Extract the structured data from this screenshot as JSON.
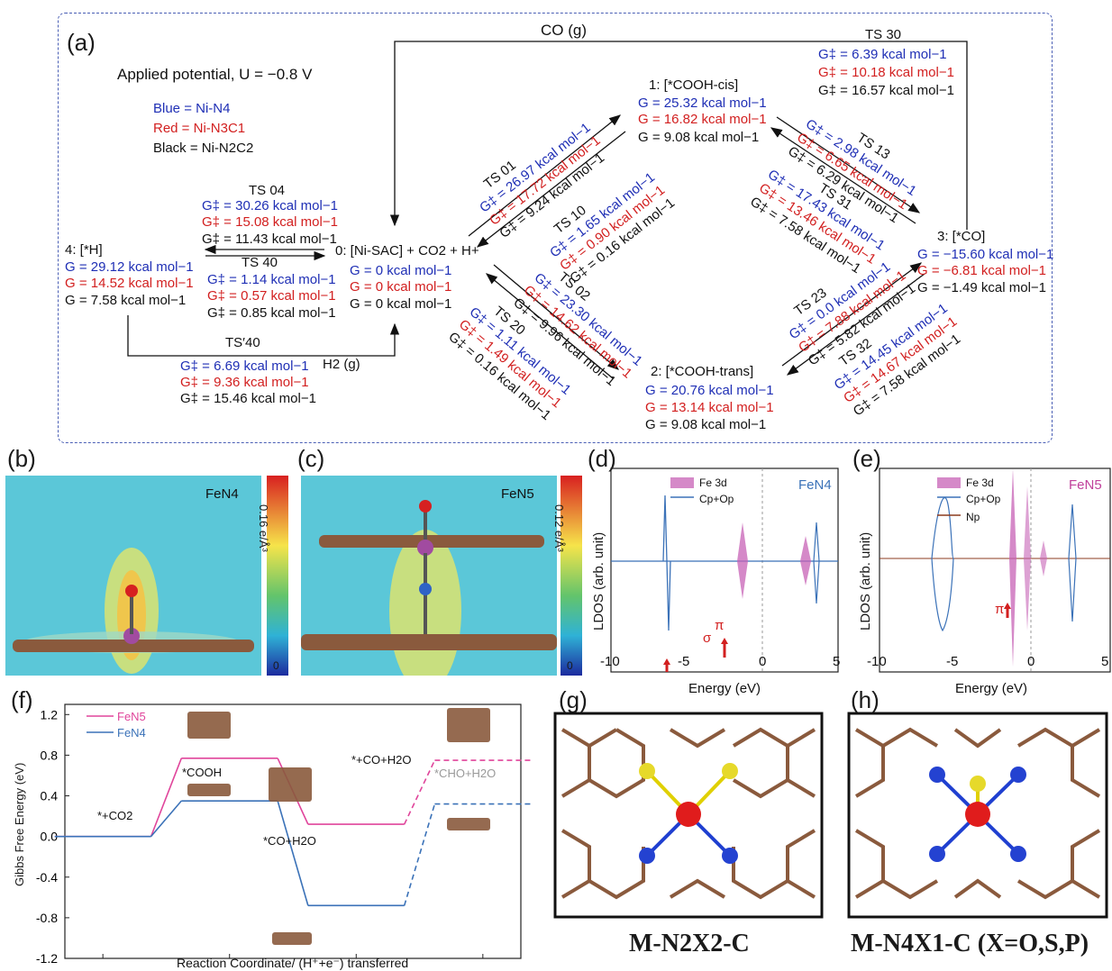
{
  "panels": {
    "a": "(a)",
    "b": "(b)",
    "c": "(c)",
    "d": "(d)",
    "e": "(e)",
    "f": "(f)",
    "g": "(g)",
    "h": "(h)"
  },
  "panel_a": {
    "potential": "Applied potential, U = −0.8 V",
    "legend_blue": "Blue = Ni-N4",
    "legend_red": "Red = Ni-N3C1",
    "legend_black": "Black = Ni-N2C2",
    "co_gas": "CO (g)",
    "h2_gas": "H2 (g)",
    "state0": "0: [Ni-SAC] + CO2 + H+",
    "state0_g": [
      "G = 0 kcal mol−1",
      "G = 0 kcal mol−1",
      "G = 0 kcal mol−1"
    ],
    "state1": "1: [*COOH-cis]",
    "state1_g": [
      "G = 25.32 kcal mol−1",
      "G = 16.82 kcal mol−1",
      "G = 9.08 kcal mol−1"
    ],
    "state2": "2: [*COOH-trans]",
    "state2_g": [
      "G = 20.76 kcal mol−1",
      "G = 13.14 kcal mol−1",
      "G = 9.08 kcal mol−1"
    ],
    "state3": "3: [*CO]",
    "state3_g": [
      "G = −15.60 kcal mol−1",
      "G = −6.81 kcal mol−1",
      "G = −1.49 kcal mol−1"
    ],
    "state4": "4: [*H]",
    "state4_g": [
      "G = 29.12 kcal mol−1",
      "G = 14.52 kcal mol−1",
      "G = 7.58 kcal mol−1"
    ],
    "ts30": "TS 30",
    "ts30_g": [
      "G‡ = 6.39 kcal mol−1",
      "G‡ = 10.18 kcal mol−1",
      "G‡ = 16.57 kcal mol−1"
    ],
    "ts04": "TS 04",
    "ts04_g": [
      "G‡ = 30.26 kcal mol−1",
      "G‡ = 15.08 kcal mol−1",
      "G‡ = 11.43 kcal mol−1"
    ],
    "ts40": "TS 40",
    "ts40_g": [
      "G‡ = 1.14 kcal mol−1",
      "G‡ = 0.57 kcal mol−1",
      "G‡ = 0.85 kcal mol−1"
    ],
    "ts40p": "TS′40",
    "ts40p_g": [
      "G‡ = 6.69 kcal mol−1",
      "G‡ = 9.36 kcal mol−1",
      "G‡ = 15.46 kcal mol−1"
    ],
    "ts01": "TS 01",
    "ts01_g": [
      "G‡ = 26.97 kcal mol−1",
      "G‡ = 17.72 kcal mol−1",
      "G‡ = 9.24 kcal mol−1"
    ],
    "ts10": "TS 10",
    "ts10_g": [
      "G‡ = 1.65 kcal mol−1",
      "G‡ = 0.90 kcal mol−1",
      "G‡ = 0.16 kcal mol−1"
    ],
    "ts02": "TS 02",
    "ts02_g": [
      "G‡ = 23.30 kcal mol−1",
      "G‡ = 14.62 kcal mol−1",
      "G‡ = 9.96 kcal mol−1"
    ],
    "ts20": "TS 20",
    "ts20_g": [
      "G‡ = 1.11 kcal mol−1",
      "G‡ = 1.49 kcal mol−1",
      "G‡ = 0.16 kcal mol−1"
    ],
    "ts13": "TS 13",
    "ts13_g": [
      "G‡ = 2.98 kcal mol−1",
      "G‡ = 6.65 kcal mol−1",
      "G‡ = 6.29 kcal mol−1"
    ],
    "ts31": "TS 31",
    "ts31_g": [
      "G‡ = 17.43 kcal mol−1",
      "G‡ = 13.46 kcal mol−1",
      "G‡ = 7.58 kcal mol−1"
    ],
    "ts23": "TS 23",
    "ts23_g": [
      "G‡ = 0.0 kcal mol−1",
      "G‡ = 7.88 kcal mol−1",
      "G‡ = 5.82 kcal mol−1"
    ],
    "ts32": "TS 32",
    "ts32_g": [
      "G‡ = 14.45 kcal mol−1",
      "G‡ = 14.67 kcal mol−1",
      "G‡ = 7.58 kcal mol−1"
    ]
  },
  "panel_b": {
    "label": "FeN4",
    "scale": "0.16 e/Å³",
    "zero": "0"
  },
  "panel_c": {
    "label": "FeN5",
    "scale": "0.12 e/Å³",
    "zero": "0"
  },
  "panel_d": {
    "label": "FeN4",
    "sigma": "σ",
    "pi": "π"
  },
  "panel_e": {
    "label": "FeN5",
    "pi": "π"
  },
  "chart_data": [
    {
      "type": "line",
      "panel": "d",
      "xlabel": "Energy (eV)",
      "ylabel": "LDOS (arb. unit)",
      "xlim": [
        -10,
        5
      ],
      "xticks": [
        "-10",
        "-5",
        "0",
        "5"
      ],
      "series": [
        {
          "name": "Fe 3d"
        },
        {
          "name": "Cp+Op"
        }
      ]
    },
    {
      "type": "line",
      "panel": "e",
      "xlabel": "Energy (eV)",
      "ylabel": "LDOS (arb. unit)",
      "xlim": [
        -10,
        5
      ],
      "xticks": [
        "-10",
        "-5",
        "0",
        "5"
      ],
      "series": [
        {
          "name": "Fe 3d"
        },
        {
          "name": "Cp+Op"
        },
        {
          "name": "Np"
        }
      ]
    },
    {
      "type": "line",
      "panel": "f",
      "xlabel": "Reaction Coordinate/ (H⁺+e⁻) transferred",
      "ylabel": "Gibbs Free Energy (eV)",
      "xlim": [
        -0.3,
        3.3
      ],
      "ylim": [
        -1.2,
        1.3
      ],
      "xticks": [
        "0",
        "1",
        "2",
        "3"
      ],
      "yticks": [
        "-1.2",
        "-0.8",
        "-0.4",
        "0.0",
        "0.4",
        "0.8",
        "1.2"
      ],
      "series": [
        {
          "name": "FeN5",
          "x": [
            0,
            1,
            2,
            3
          ],
          "values": [
            0.0,
            0.77,
            0.12,
            0.75
          ],
          "color": "#e0459b"
        },
        {
          "name": "FeN4",
          "x": [
            0,
            1,
            2,
            3
          ],
          "values": [
            0.0,
            0.35,
            -0.68,
            0.32
          ],
          "color": "#3b72b8"
        }
      ],
      "annotations": [
        "*+CO2",
        "*COOH",
        "*CO+H2O",
        "*+CO+H2O",
        "*CHO+H2O"
      ]
    }
  ],
  "panel_g": {
    "caption": "M-N2X2-C"
  },
  "panel_h": {
    "caption": "M-N4X1-C (X=O,S,P)"
  }
}
